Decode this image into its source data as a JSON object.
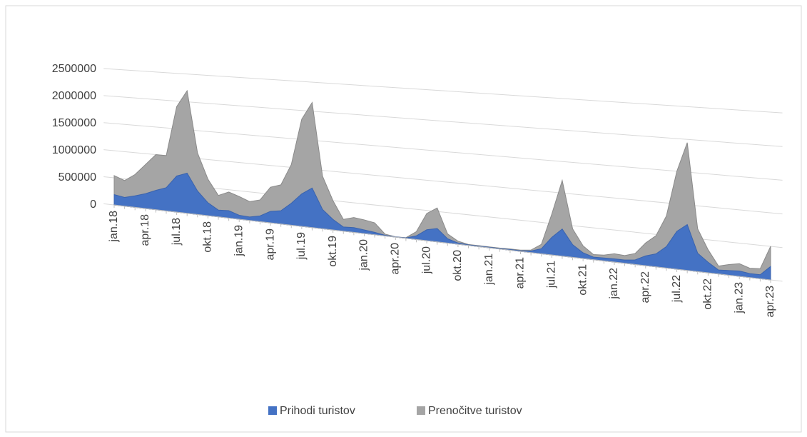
{
  "chart_data": {
    "type": "area",
    "categories": [
      "jan.18",
      null,
      null,
      "apr.18",
      null,
      null,
      "jul.18",
      null,
      null,
      "okt.18",
      null,
      null,
      "jan.19",
      null,
      null,
      "apr.19",
      null,
      null,
      "jul.19",
      null,
      null,
      "okt.19",
      null,
      null,
      "jan.20",
      null,
      null,
      "apr.20",
      null,
      null,
      "jul.20",
      null,
      null,
      "okt.20",
      null,
      null,
      "jan.21",
      null,
      null,
      "apr.21",
      null,
      null,
      "jul.21",
      null,
      null,
      "okt.21",
      null,
      null,
      "jan.22",
      null,
      null,
      "apr.22",
      null,
      null,
      "jul.22",
      null,
      null,
      "okt.22",
      null,
      null,
      "jan.23",
      null,
      null,
      "apr.23"
    ],
    "series": [
      {
        "name": "Prenočitve turistov",
        "color": "#a5a5a5",
        "values": [
          540000,
          470000,
          600000,
          800000,
          1000000,
          1000000,
          1900000,
          2200000,
          1100000,
          650000,
          380000,
          460000,
          400000,
          330000,
          380000,
          620000,
          680000,
          1050000,
          1850000,
          2150000,
          900000,
          500000,
          200000,
          250000,
          230000,
          200000,
          30000,
          5000,
          10000,
          130000,
          450000,
          560000,
          150000,
          50000,
          15000,
          15000,
          15000,
          15000,
          20000,
          20000,
          40000,
          150000,
          650000,
          1200000,
          450000,
          200000,
          80000,
          90000,
          130000,
          120000,
          170000,
          350000,
          480000,
          800000,
          1500000,
          1950000,
          650000,
          350000,
          120000,
          160000,
          190000,
          140000,
          150000,
          500000
        ]
      },
      {
        "name": "Prihodi turistov",
        "color": "#4472c4",
        "values": [
          190000,
          160000,
          210000,
          270000,
          350000,
          420000,
          650000,
          720000,
          420000,
          230000,
          120000,
          130000,
          70000,
          60000,
          100000,
          200000,
          230000,
          380000,
          560000,
          680000,
          330000,
          180000,
          70000,
          80000,
          60000,
          40000,
          10000,
          3000,
          5000,
          60000,
          180000,
          220000,
          70000,
          20000,
          8000,
          8000,
          7000,
          8000,
          10000,
          10000,
          25000,
          80000,
          280000,
          430000,
          200000,
          90000,
          40000,
          45000,
          50000,
          50000,
          70000,
          150000,
          200000,
          330000,
          580000,
          700000,
          280000,
          160000,
          60000,
          70000,
          80000,
          60000,
          60000,
          200000
        ]
      }
    ],
    "ylim": [
      0,
      2500000
    ],
    "yticks": [
      0,
      500000,
      1000000,
      1500000,
      2000000,
      2500000
    ],
    "grid": true,
    "legend": "bottom"
  }
}
